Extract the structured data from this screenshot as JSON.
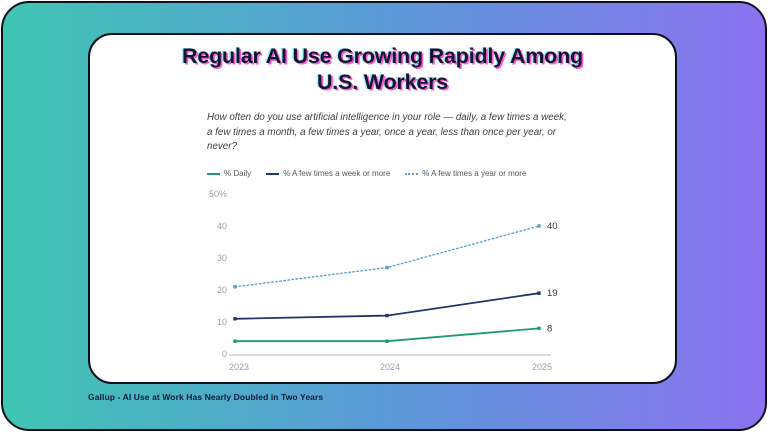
{
  "card": {
    "title": "Regular AI Use Growing Rapidly Among U.S. Workers",
    "subtitle": "How often do you use artificial intelligence in your role — daily, a few times a week, a few times a month, a few times a year, once a year, less than once per year, or never?"
  },
  "caption": "Gallup - AI Use at Work Has Nearly Doubled in Two Years",
  "colors": {
    "background_gradient_left": "#3fc5b2",
    "background_gradient_mid": "#5b9ad8",
    "background_gradient_right": "#8b72f0",
    "card_background": "#ffffff",
    "border": "#10101c",
    "title_text": "#15152e",
    "title_glitch_pink": "#ff2ac8",
    "title_glitch_cyan": "#24d7ff",
    "tick_text": "#9aa0a6",
    "axis_line": "#b3b3b3",
    "data_label_text": "#33373c"
  },
  "chart_data": {
    "type": "line",
    "title": "Regular AI Use Growing Rapidly Among U.S. Workers",
    "xlabel": "",
    "ylabel": "",
    "x": [
      2023,
      2024,
      2025
    ],
    "x_tick_labels": [
      "2023",
      "2024",
      "2025"
    ],
    "ylim": [
      0,
      50
    ],
    "yticks": [
      0,
      10,
      20,
      30,
      40,
      50
    ],
    "ytick_labels": [
      "0",
      "10",
      "20",
      "30",
      "40",
      "50%"
    ],
    "grid": false,
    "legend_position": "top",
    "series": [
      {
        "name": "% Daily",
        "values": [
          4,
          4,
          8
        ],
        "color": "#1d9b6c",
        "style": "solid",
        "end_label": "8"
      },
      {
        "name": "% A few times a week or more",
        "values": [
          11,
          12,
          19
        ],
        "color": "#22366b",
        "style": "solid",
        "end_label": "19"
      },
      {
        "name": "% A few times a year or more",
        "values": [
          21,
          27,
          40
        ],
        "color": "#5d9fc6",
        "style": "dotted",
        "end_label": "40"
      }
    ]
  }
}
